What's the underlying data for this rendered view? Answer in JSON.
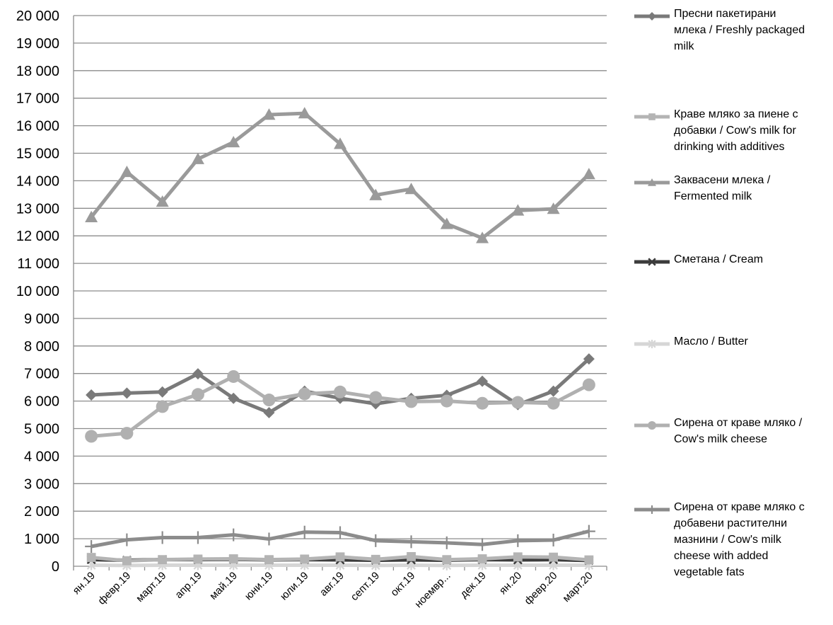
{
  "chart_data": {
    "type": "line",
    "categories": [
      "ян.19",
      "февр.19",
      "март.19",
      "апр.19",
      "май.19",
      "юни.19",
      "юли.19",
      "авг.19",
      "септ.19",
      "окт.19",
      "ноември.19",
      "дек.19",
      "ян.20",
      "февр.20",
      "март.20"
    ],
    "category_labels": [
      "ян.19",
      "февр.19",
      "март.19",
      "апр.19",
      "май.19",
      "юни.19",
      "юли.19",
      "авг.19",
      "септ.19",
      "окт.19",
      "ноемвр...",
      "дек.19",
      "ян.20",
      "февр.20",
      "март.20"
    ],
    "ylim": [
      0,
      20000
    ],
    "yticks": [
      0,
      1000,
      2000,
      3000,
      4000,
      5000,
      6000,
      7000,
      8000,
      9000,
      10000,
      11000,
      12000,
      13000,
      14000,
      15000,
      16000,
      17000,
      18000,
      19000,
      20000
    ],
    "ytick_labels": [
      "0",
      "1 000",
      "2 000",
      "3 000",
      "4 000",
      "5 000",
      "6 000",
      "7 000",
      "8 000",
      "9 000",
      "10 000",
      "11 000",
      "12 000",
      "13 000",
      "14 000",
      "15 000",
      "16 000",
      "17 000",
      "18 000",
      "19 000",
      "20 000"
    ],
    "grid": true,
    "legend_position": "right",
    "series": [
      {
        "name": "Пресни пакетирани млека / Freshly packaged milk",
        "marker": "diamond",
        "color": "#7a7a7a",
        "values": [
          6220,
          6290,
          6330,
          6990,
          6100,
          5580,
          6360,
          6100,
          5900,
          6100,
          6210,
          6720,
          5870,
          6360,
          7530
        ]
      },
      {
        "name": "Краве мляко за пиене с добавки  / Cow's milk for drinking with additives",
        "marker": "square",
        "color": "#b4b4b4",
        "values": [
          320,
          200,
          240,
          260,
          270,
          240,
          260,
          340,
          250,
          350,
          240,
          270,
          340,
          330,
          230
        ]
      },
      {
        "name": "Заквасени млека / Fermented milk",
        "marker": "triangle",
        "color": "#9a9a9a",
        "values": [
          12680,
          14320,
          13240,
          14790,
          15400,
          16400,
          16450,
          15340,
          13480,
          13700,
          12430,
          11920,
          12920,
          12980,
          14240
        ]
      },
      {
        "name": "Сметана / Cream",
        "marker": "x",
        "color": "#3c3c3c",
        "values": [
          240,
          220,
          240,
          240,
          250,
          230,
          240,
          230,
          220,
          230,
          220,
          240,
          230,
          240,
          210
        ]
      },
      {
        "name": "Масло / Butter",
        "marker": "asterisk",
        "color": "#d6d6d6",
        "values": [
          40,
          30,
          40,
          40,
          40,
          40,
          40,
          40,
          30,
          40,
          30,
          40,
          40,
          40,
          40
        ]
      },
      {
        "name": "Сирена от краве мляко / Cow's milk cheese",
        "marker": "circle",
        "color": "#b0b0b0",
        "values": [
          4720,
          4830,
          5800,
          6240,
          6890,
          6040,
          6260,
          6330,
          6130,
          5980,
          6000,
          5920,
          5950,
          5920,
          6590
        ]
      },
      {
        "name": "Сирена от краве мляко с добавени растителни мазнини  / Cow's milk cheese with added vegetable fats",
        "marker": "plus",
        "color": "#8c8c8c",
        "values": [
          720,
          960,
          1040,
          1040,
          1140,
          990,
          1240,
          1220,
          930,
          890,
          850,
          790,
          930,
          950,
          1270
        ]
      }
    ]
  },
  "legend": {
    "items": [
      {
        "lines": [
          "Пресни пакетирани",
          "млека / Freshly packaged",
          "milk"
        ]
      },
      {
        "lines": [
          "Краве мляко за пиене с",
          "добавки  / Cow's milk for",
          "drinking with additives"
        ]
      },
      {
        "lines": [
          "Заквасени млека /",
          "Fermented milk"
        ]
      },
      {
        "lines": [
          "Сметана / Cream"
        ]
      },
      {
        "lines": [
          "Масло / Butter"
        ]
      },
      {
        "lines": [
          "Сирена от краве мляко /",
          "Cow's milk cheese"
        ]
      },
      {
        "lines": [
          "Сирена от краве мляко с",
          "добавени растителни",
          "мазнини  / Cow's milk",
          "cheese with added",
          "vegetable fats"
        ]
      }
    ]
  }
}
